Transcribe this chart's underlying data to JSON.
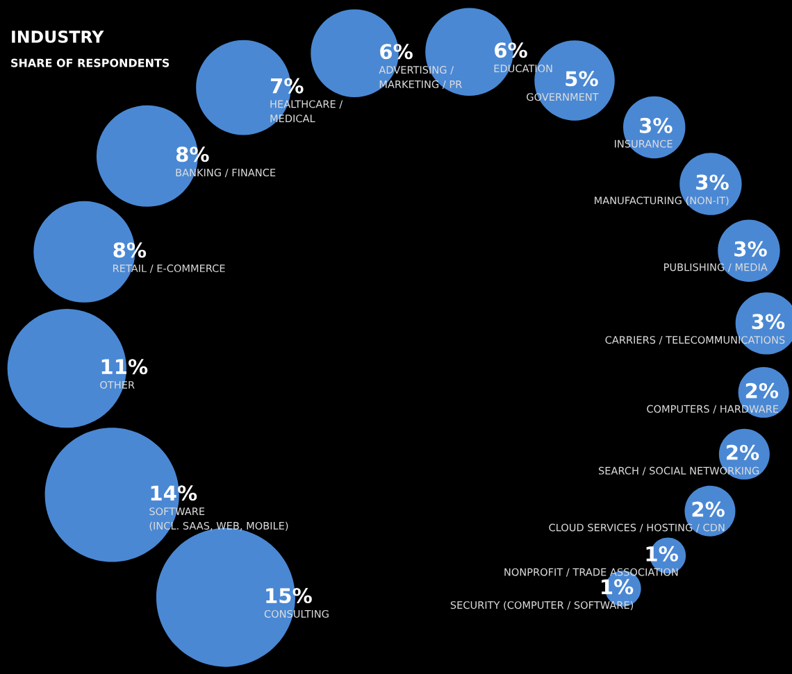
{
  "chart_data": {
    "type": "other",
    "title": "INDUSTRY",
    "subtitle": "SHARE OF RESPONDENTS",
    "categories": [
      "CONSULTING",
      "SOFTWARE\n(INCL. SAAS, WEB, MOBILE)",
      "OTHER",
      "RETAIL / E-COMMERCE",
      "BANKING / FINANCE",
      "HEALTHCARE /\nMEDICAL",
      "ADVERTISING /\nMARKETING / PR",
      "EDUCATION",
      "GOVERNMENT",
      "INSURANCE",
      "MANUFACTURING (NON-IT)",
      "PUBLISHING / MEDIA",
      "CARRIERS / TELECOMMUNICATIONS",
      "COMPUTERS / HARDWARE",
      "SEARCH / SOCIAL NETWORKING",
      "CLOUD SERVICES / HOSTING / CDN",
      "NONPROFIT / TRADE ASSOCIATION",
      "SECURITY (COMPUTER / SOFTWARE)"
    ],
    "values": [
      15,
      14,
      11,
      8,
      8,
      7,
      6,
      6,
      5,
      3,
      3,
      3,
      3,
      2,
      2,
      2,
      1,
      1
    ],
    "value_labels": [
      "15%",
      "14%",
      "11%",
      "8%",
      "8%",
      "7%",
      "6%",
      "6%",
      "5%",
      "3%",
      "3%",
      "3%",
      "3%",
      "2%",
      "2%",
      "2%",
      "1%",
      "1%"
    ],
    "color": "#4a88d4"
  }
}
